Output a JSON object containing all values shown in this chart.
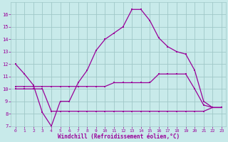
{
  "xlabel": "Windchill (Refroidissement éolien,°C)",
  "x_values": [
    0,
    1,
    2,
    3,
    4,
    5,
    6,
    7,
    8,
    9,
    10,
    11,
    12,
    13,
    14,
    15,
    16,
    17,
    18,
    19,
    20,
    21,
    22,
    23
  ],
  "line1": [
    12.0,
    11.2,
    10.3,
    8.1,
    7.0,
    9.0,
    9.0,
    10.5,
    11.5,
    13.1,
    14.0,
    14.5,
    15.0,
    16.4,
    16.4,
    15.5,
    14.1,
    13.4,
    13.0,
    12.8,
    11.5,
    9.0,
    8.5,
    8.5
  ],
  "line2": [
    10.2,
    10.2,
    10.2,
    10.2,
    10.2,
    10.2,
    10.2,
    10.2,
    10.2,
    10.2,
    10.2,
    10.5,
    10.5,
    10.5,
    10.5,
    10.5,
    11.2,
    11.2,
    11.2,
    11.2,
    10.0,
    8.7,
    8.5,
    8.5
  ],
  "line3": [
    10.0,
    10.0,
    10.0,
    10.0,
    8.2,
    8.2,
    8.2,
    8.2,
    8.2,
    8.2,
    8.2,
    8.2,
    8.2,
    8.2,
    8.2,
    8.2,
    8.2,
    8.2,
    8.2,
    8.2,
    8.2,
    8.2,
    8.5,
    8.5
  ],
  "line_color": "#990099",
  "background_color": "#c8eaea",
  "grid_color": "#a0c8c8",
  "ylim_min": 7,
  "ylim_max": 17,
  "yticks": [
    7,
    8,
    9,
    10,
    11,
    12,
    13,
    14,
    15,
    16
  ],
  "xticks": [
    0,
    1,
    2,
    3,
    4,
    5,
    6,
    7,
    8,
    9,
    10,
    11,
    12,
    13,
    14,
    15,
    16,
    17,
    18,
    19,
    20,
    21,
    22,
    23
  ],
  "markersize": 2.0,
  "linewidth": 0.9,
  "tick_fontsize": 4.5,
  "xlabel_fontsize": 5.5
}
